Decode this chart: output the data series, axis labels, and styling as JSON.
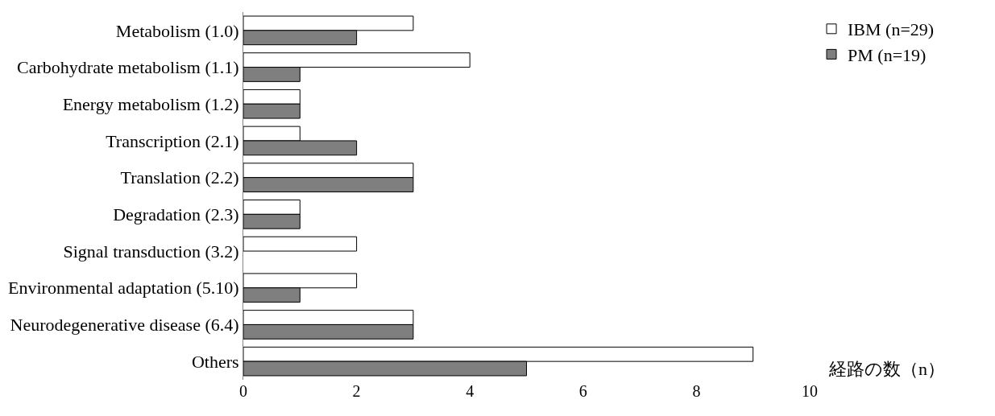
{
  "chart_data": {
    "type": "bar",
    "orientation": "horizontal",
    "xlabel": "経路の数（n）",
    "categories": [
      "Metabolism (1.0)",
      "Carbohydrate metabolism (1.1)",
      "Energy metabolism (1.2)",
      "Transcription (2.1)",
      "Translation (2.2)",
      "Degradation (2.3)",
      "Signal transduction (3.2)",
      "Environmental adaptation (5.10)",
      "Neurodegenerative disease (6.4)",
      "Others"
    ],
    "series": [
      {
        "name": "IBM (n=29)",
        "color": "#ffffff",
        "values": [
          3,
          4,
          1,
          1,
          3,
          1,
          2,
          2,
          3,
          9
        ]
      },
      {
        "name": "PM (n=19)",
        "color": "#7f7f7f",
        "values": [
          2,
          1,
          1,
          2,
          3,
          1,
          0,
          1,
          3,
          5
        ]
      }
    ],
    "xlim": [
      0,
      10
    ],
    "xticks": [
      0,
      2,
      4,
      6,
      8,
      10
    ],
    "legend": "top right"
  }
}
